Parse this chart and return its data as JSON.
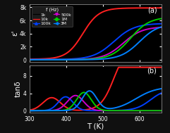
{
  "title_a": "(a)",
  "title_b": "(b)",
  "xlabel": "T (K)",
  "ylabel_a": "ε'",
  "ylabel_b": "tanδ",
  "legend_title": "f (Hz)",
  "T_min": 300,
  "T_max": 660,
  "ylim_a": [
    -300,
    8500
  ],
  "ylim_b": [
    -0.4,
    10.5
  ],
  "yticks_a": [
    0,
    2000,
    4000,
    6000,
    8000
  ],
  "ytick_labels_a": [
    "0",
    "2k",
    "4k",
    "6k",
    "8k"
  ],
  "yticks_b": [
    0,
    4,
    8
  ],
  "ytick_labels_b": [
    "0",
    "4",
    "8"
  ],
  "xticks": [
    300,
    400,
    500,
    600
  ],
  "xtick_labels": [
    "300",
    "400",
    "500",
    "600"
  ],
  "bg_color": "#000000",
  "fig_bg": "#1a1a1a",
  "colors_eps": [
    "#000000",
    "#ff2020",
    "#0040ff",
    "#cc00cc",
    "#00cc00",
    "#0080ff"
  ],
  "colors_tan": [
    "#000000",
    "#ff2020",
    "#0040ff",
    "#cc00cc",
    "#00cc00",
    "#0080ff"
  ],
  "lw": 1.4
}
